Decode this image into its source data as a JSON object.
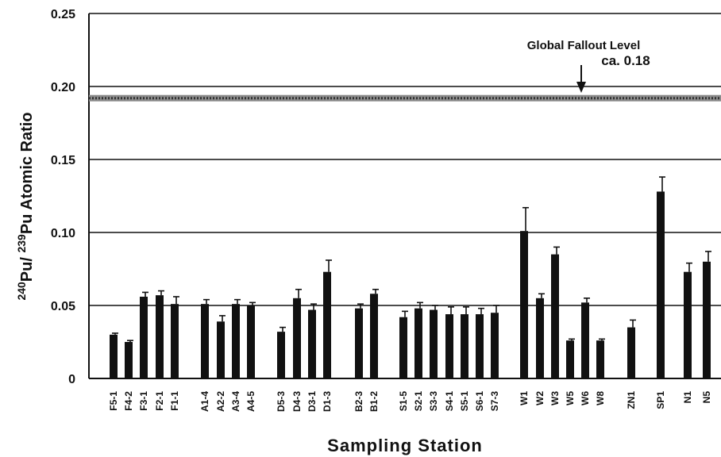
{
  "chart_data": {
    "type": "bar",
    "xlabel": "Sampling Station",
    "ylabel_parts": {
      "sup1": "240",
      "base1": "Pu/ ",
      "sup2": "239",
      "base2": "Pu Atomic Ratio"
    },
    "ylim": [
      0,
      0.25
    ],
    "yticks": [
      {
        "value": 0,
        "label": "0"
      },
      {
        "value": 0.05,
        "label": "0.05"
      },
      {
        "value": 0.1,
        "label": "0.10"
      },
      {
        "value": 0.15,
        "label": "0.15"
      },
      {
        "value": 0.2,
        "label": "0.20"
      },
      {
        "value": 0.25,
        "label": "0.25"
      }
    ],
    "grid": true,
    "global_fallout_band": 0.192,
    "annotation": {
      "line1": "Global Fallout Level",
      "line2": "ca. 0.18"
    },
    "categories": [
      "F5-1",
      "F4-2",
      "F3-1",
      "F2-1",
      "F1-1",
      "A1-4",
      "A2-2",
      "A3-4",
      "A4-5",
      "D5-3",
      "D4-3",
      "D3-1",
      "D1-3",
      "B2-3",
      "B1-2",
      "S1-5",
      "S2-1",
      "S3-3",
      "S4-1",
      "S5-1",
      "S6-1",
      "S7-3",
      "W1",
      "W2",
      "W3",
      "W5",
      "W6",
      "W8",
      "ZN1",
      "SP1",
      "N1",
      "N5"
    ],
    "values": [
      0.03,
      0.025,
      0.056,
      0.057,
      0.051,
      0.051,
      0.039,
      0.051,
      0.05,
      0.032,
      0.055,
      0.047,
      0.073,
      0.048,
      0.058,
      0.042,
      0.048,
      0.047,
      0.044,
      0.044,
      0.044,
      0.045,
      0.101,
      0.055,
      0.085,
      0.026,
      0.052,
      0.026,
      0.035,
      0.128,
      0.073,
      0.08
    ],
    "errors": [
      0.001,
      0.001,
      0.003,
      0.003,
      0.005,
      0.003,
      0.004,
      0.003,
      0.002,
      0.003,
      0.006,
      0.004,
      0.008,
      0.003,
      0.003,
      0.004,
      0.004,
      0.003,
      0.005,
      0.005,
      0.004,
      0.005,
      0.016,
      0.003,
      0.005,
      0.001,
      0.003,
      0.001,
      0.005,
      0.01,
      0.006,
      0.007
    ]
  }
}
